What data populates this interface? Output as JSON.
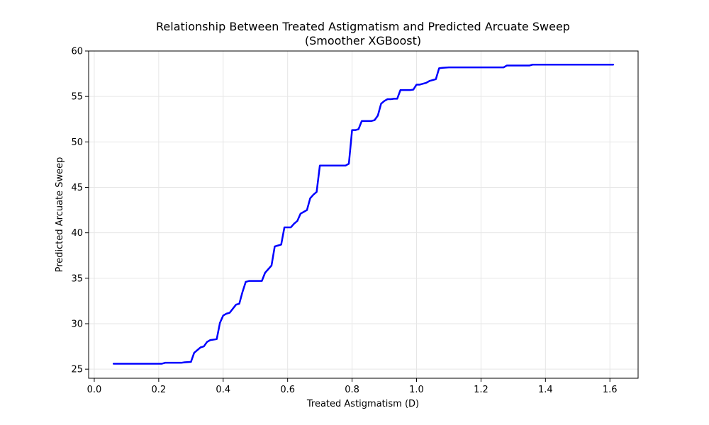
{
  "chart_data": {
    "type": "line",
    "title": "Relationship Between Treated Astigmatism and Predicted Arcuate Sweep",
    "subtitle": "(Smoother XGBoost)",
    "xlabel": "Treated Astigmatism (D)",
    "ylabel": "Predicted Arcuate Sweep",
    "xlim": [
      -0.0175,
      1.6875
    ],
    "ylim": [
      24.0,
      60.0
    ],
    "x_ticks": [
      0.0,
      0.2,
      0.4,
      0.6,
      0.8,
      1.0,
      1.2,
      1.4,
      1.6
    ],
    "x_tick_labels": [
      "0.0",
      "0.2",
      "0.4",
      "0.6",
      "0.8",
      "1.0",
      "1.2",
      "1.4",
      "1.6"
    ],
    "y_ticks": [
      25,
      30,
      35,
      40,
      45,
      50,
      55,
      60
    ],
    "y_tick_labels": [
      "25",
      "30",
      "35",
      "40",
      "45",
      "50",
      "55",
      "60"
    ],
    "grid": true,
    "series": [
      {
        "color": "#0000ff",
        "x": [
          0.06,
          0.1,
          0.15,
          0.2,
          0.21,
          0.22,
          0.25,
          0.27,
          0.28,
          0.3,
          0.31,
          0.33,
          0.34,
          0.35,
          0.36,
          0.38,
          0.39,
          0.4,
          0.41,
          0.42,
          0.44,
          0.45,
          0.46,
          0.47,
          0.48,
          0.49,
          0.5,
          0.51,
          0.52,
          0.53,
          0.54,
          0.55,
          0.56,
          0.57,
          0.58,
          0.59,
          0.6,
          0.61,
          0.62,
          0.63,
          0.64,
          0.65,
          0.66,
          0.67,
          0.68,
          0.69,
          0.7,
          0.71,
          0.73,
          0.75,
          0.77,
          0.78,
          0.79,
          0.8,
          0.81,
          0.82,
          0.83,
          0.84,
          0.85,
          0.86,
          0.87,
          0.88,
          0.89,
          0.9,
          0.91,
          0.92,
          0.93,
          0.94,
          0.95,
          0.96,
          0.97,
          0.98,
          0.99,
          1.0,
          1.01,
          1.02,
          1.03,
          1.04,
          1.05,
          1.06,
          1.07,
          1.08,
          1.1,
          1.12,
          1.15,
          1.2,
          1.25,
          1.27,
          1.28,
          1.3,
          1.35,
          1.36,
          1.4,
          1.45,
          1.5,
          1.55,
          1.61
        ],
        "y": [
          25.6,
          25.6,
          25.6,
          25.6,
          25.6,
          25.7,
          25.7,
          25.7,
          25.75,
          25.8,
          26.8,
          27.4,
          27.5,
          28.0,
          28.2,
          28.3,
          30.1,
          30.9,
          31.1,
          31.2,
          32.1,
          32.2,
          33.5,
          34.6,
          34.7,
          34.7,
          34.7,
          34.7,
          34.7,
          35.6,
          36.0,
          36.4,
          38.5,
          38.6,
          38.7,
          40.6,
          40.6,
          40.6,
          41.0,
          41.3,
          42.1,
          42.3,
          42.5,
          43.8,
          44.2,
          44.5,
          47.4,
          47.4,
          47.4,
          47.4,
          47.4,
          47.4,
          47.6,
          51.3,
          51.3,
          51.4,
          52.3,
          52.3,
          52.3,
          52.3,
          52.4,
          52.9,
          54.2,
          54.5,
          54.7,
          54.7,
          54.75,
          54.75,
          55.7,
          55.7,
          55.7,
          55.7,
          55.75,
          56.3,
          56.3,
          56.4,
          56.5,
          56.7,
          56.8,
          56.9,
          58.1,
          58.15,
          58.2,
          58.2,
          58.2,
          58.2,
          58.2,
          58.2,
          58.4,
          58.4,
          58.4,
          58.5,
          58.5,
          58.5,
          58.5,
          58.5,
          58.5
        ]
      }
    ]
  }
}
